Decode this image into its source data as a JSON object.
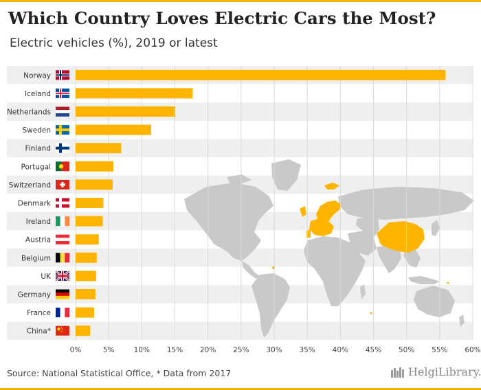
{
  "header": {
    "title": "Which Country Loves Electric Cars the Most?",
    "subtitle": "Electric vehicles (%), 2019 or latest"
  },
  "footer": {
    "source": "Source: National Statistical Office, * Data from 2017",
    "brand": "HelgiLibrary."
  },
  "colors": {
    "accent": "#f7b500",
    "bar": "#ffb400",
    "row_band": "#efefef",
    "grid": "#d9d9d9",
    "map_land": "#c9c9c9",
    "map_highlight": "#ffb400"
  },
  "background_map": {
    "highlighted_regions": [
      "Norway",
      "Iceland",
      "Netherlands",
      "Sweden",
      "Finland",
      "Portugal",
      "Switzerland",
      "Denmark",
      "Ireland",
      "Austria",
      "Belgium",
      "UK",
      "Germany",
      "France",
      "China"
    ]
  },
  "chart_data": {
    "type": "bar",
    "orientation": "horizontal",
    "title": "Which Country Loves Electric Cars the Most?",
    "subtitle": "Electric vehicles (%), 2019 or latest",
    "categories": [
      "Norway",
      "Iceland",
      "Netherlands",
      "Sweden",
      "Finland",
      "Portugal",
      "Switzerland",
      "Denmark",
      "Ireland",
      "Austria",
      "Belgium",
      "UK",
      "Germany",
      "France",
      "China*"
    ],
    "flags": [
      "norway",
      "iceland",
      "netherlands",
      "sweden",
      "finland",
      "portugal",
      "switzerland",
      "denmark",
      "ireland",
      "austria",
      "belgium",
      "uk",
      "germany",
      "france",
      "china"
    ],
    "values": [
      55.9,
      17.7,
      15.0,
      11.4,
      6.9,
      5.7,
      5.6,
      4.2,
      4.1,
      3.5,
      3.2,
      3.1,
      3.0,
      2.8,
      2.2
    ],
    "xlim": [
      0,
      60
    ],
    "xticks": [
      0,
      5,
      10,
      15,
      20,
      25,
      30,
      35,
      40,
      45,
      50,
      55,
      60
    ],
    "xtick_labels": [
      "0%",
      "5%",
      "10%",
      "15%",
      "20%",
      "25%",
      "30%",
      "35%",
      "40%",
      "45%",
      "50%",
      "55%",
      "60%"
    ],
    "grid": true,
    "legend": "none",
    "source": "Source: National Statistical Office, * Data from 2017"
  }
}
